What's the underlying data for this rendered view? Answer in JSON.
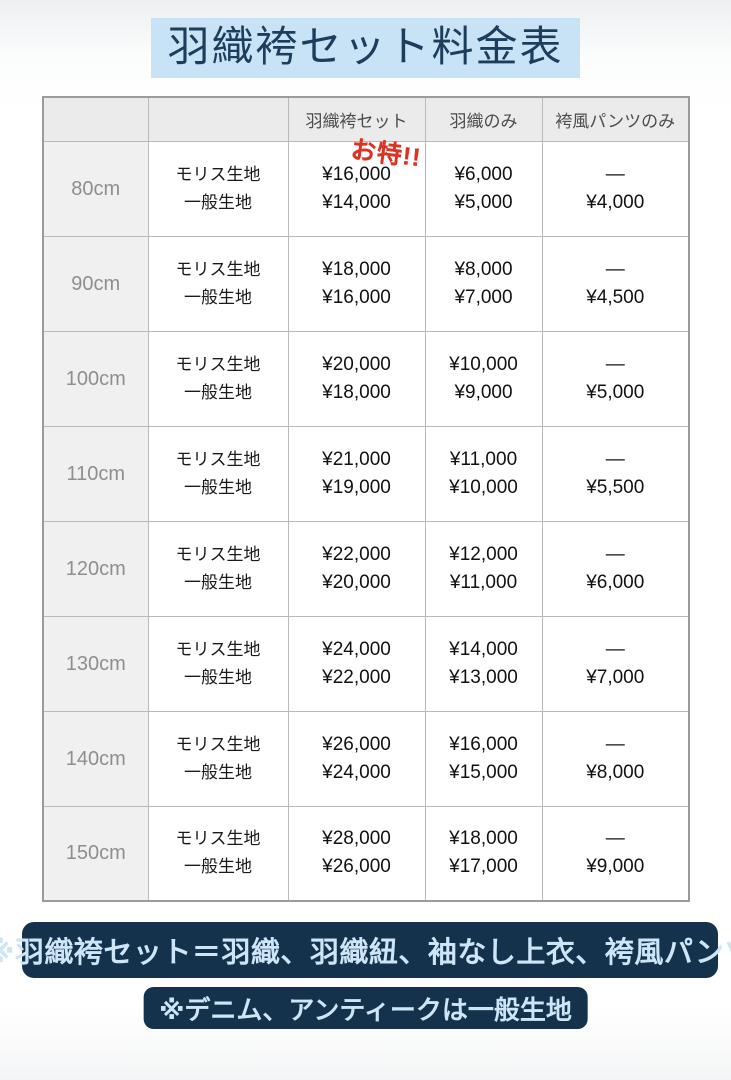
{
  "page": {
    "title": "羽織袴セット料金表"
  },
  "table": {
    "headers": [
      "",
      "",
      "羽織袴セット",
      "羽織のみ",
      "袴風パンツのみ"
    ],
    "promo_label": "お特!!",
    "fabric_lines": [
      "モリス生地",
      "一般生地"
    ],
    "rows": [
      {
        "size": "80cm",
        "set": [
          "¥16,000",
          "¥14,000"
        ],
        "haori": [
          "¥6,000",
          "¥5,000"
        ],
        "pants": [
          "—",
          "¥4,000"
        ]
      },
      {
        "size": "90cm",
        "set": [
          "¥18,000",
          "¥16,000"
        ],
        "haori": [
          "¥8,000",
          "¥7,000"
        ],
        "pants": [
          "—",
          "¥4,500"
        ]
      },
      {
        "size": "100cm",
        "set": [
          "¥20,000",
          "¥18,000"
        ],
        "haori": [
          "¥10,000",
          "¥9,000"
        ],
        "pants": [
          "—",
          "¥5,000"
        ]
      },
      {
        "size": "110cm",
        "set": [
          "¥21,000",
          "¥19,000"
        ],
        "haori": [
          "¥11,000",
          "¥10,000"
        ],
        "pants": [
          "—",
          "¥5,500"
        ]
      },
      {
        "size": "120cm",
        "set": [
          "¥22,000",
          "¥20,000"
        ],
        "haori": [
          "¥12,000",
          "¥11,000"
        ],
        "pants": [
          "—",
          "¥6,000"
        ]
      },
      {
        "size": "130cm",
        "set": [
          "¥24,000",
          "¥22,000"
        ],
        "haori": [
          "¥14,000",
          "¥13,000"
        ],
        "pants": [
          "—",
          "¥7,000"
        ]
      },
      {
        "size": "140cm",
        "set": [
          "¥26,000",
          "¥24,000"
        ],
        "haori": [
          "¥16,000",
          "¥15,000"
        ],
        "pants": [
          "—",
          "¥8,000"
        ]
      },
      {
        "size": "150cm",
        "set": [
          "¥28,000",
          "¥26,000"
        ],
        "haori": [
          "¥18,000",
          "¥17,000"
        ],
        "pants": [
          "—",
          "¥9,000"
        ]
      }
    ]
  },
  "notes": {
    "note1": "※羽織袴セット＝羽織、羽織紐、袖なし上衣、袴風パンツ",
    "note2": "※デニム、アンティークは一般生地"
  },
  "colors": {
    "navy": "#15324c",
    "title_bg": "#c9e3f6",
    "title_text": "#1d3d5c",
    "promo_red": "#dd3122",
    "note_text": "#cde5f6",
    "header_bg": "#ebebeb",
    "size_col_bg": "#f0f0f0"
  }
}
